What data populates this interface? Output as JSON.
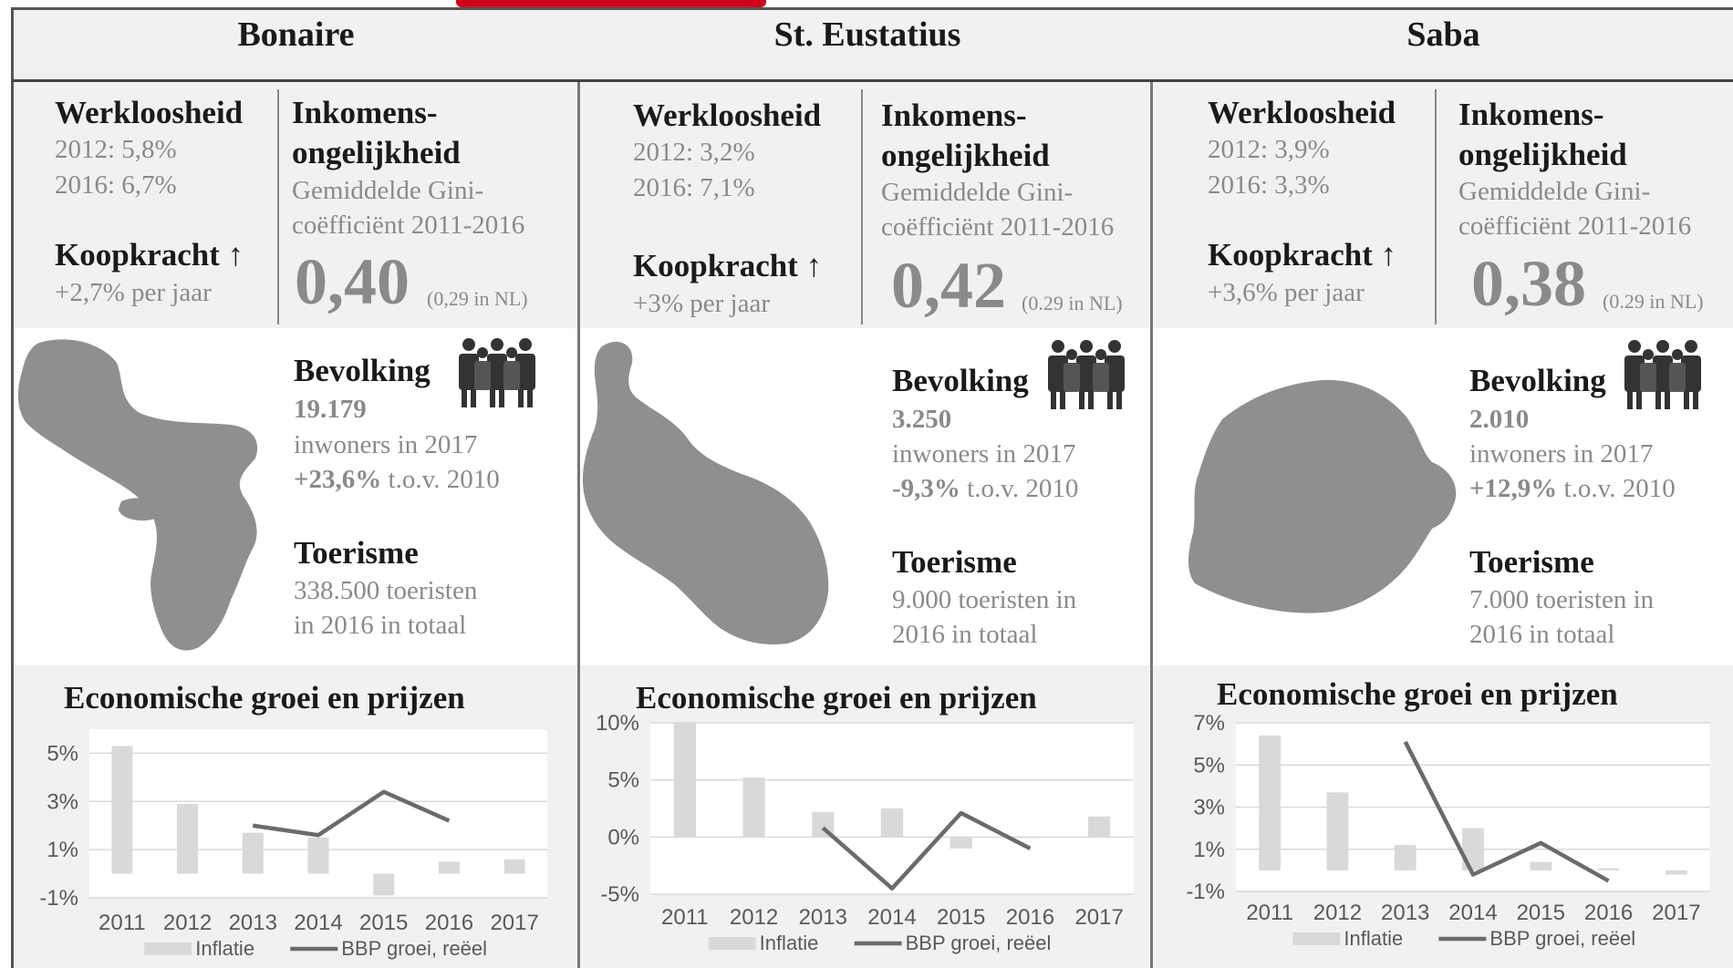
{
  "columns": [
    {
      "title": "Bonaire",
      "werkloosheid": {
        "label": "Werkloosheid",
        "line1": "2012: 5,8%",
        "line2": "2016: 6,7%"
      },
      "koopkracht": {
        "label": "Koopkracht ↑",
        "value": "+2,7% per jaar"
      },
      "inkomens": {
        "label1": "Inkomens-",
        "label2": "ongelijkheid",
        "desc1": "Gemiddelde Gini-",
        "desc2": "coëfficiënt 2011-2016",
        "value": "0,40",
        "note": "(0,29 in NL)"
      },
      "bevolking": {
        "label": "Bevolking",
        "value": "19.179",
        "desc": "inwoners in 2017",
        "change_bold": "+23,6%",
        "change_rest": " t.o.v. 2010"
      },
      "toerisme": {
        "label": "Toerisme",
        "line1": "338.500 toeristen",
        "line2": "in 2016 in totaal"
      },
      "chart_title": "Economische groei en prijzen"
    },
    {
      "title": "St. Eustatius",
      "werkloosheid": {
        "label": "Werkloosheid",
        "line1": "2012: 3,2%",
        "line2": "2016: 7,1%"
      },
      "koopkracht": {
        "label": "Koopkracht ↑",
        "value": "+3% per jaar"
      },
      "inkomens": {
        "label1": "Inkomens-",
        "label2": "ongelijkheid",
        "desc1": "Gemiddelde Gini-",
        "desc2": "coëfficiënt 2011-2016",
        "value": "0,42",
        "note": "(0.29 in NL)"
      },
      "bevolking": {
        "label": "Bevolking",
        "value": "3.250",
        "desc": "inwoners in 2017",
        "change_bold": "-9,3%",
        "change_rest": " t.o.v. 2010"
      },
      "toerisme": {
        "label": "Toerisme",
        "line1": "9.000 toeristen in",
        "line2": "2016 in totaal"
      },
      "chart_title": "Economische groei en prijzen"
    },
    {
      "title": "Saba",
      "werkloosheid": {
        "label": "Werkloosheid",
        "line1": "2012: 3,9%",
        "line2": "2016: 3,3%"
      },
      "koopkracht": {
        "label": "Koopkracht ↑",
        "value": "+3,6% per jaar"
      },
      "inkomens": {
        "label1": "Inkomens-",
        "label2": "ongelijkheid",
        "desc1": "Gemiddelde Gini-",
        "desc2": "coëfficiënt 2011-2016",
        "value": "0,38",
        "note": "(0.29 in NL)"
      },
      "bevolking": {
        "label": "Bevolking",
        "value": "2.010",
        "desc": "inwoners in 2017",
        "change_bold": "+12,9%",
        "change_rest": " t.o.v. 2010"
      },
      "toerisme": {
        "label": "Toerisme",
        "line1": "7.000 toeristen in",
        "line2": "2016 in totaal"
      },
      "chart_title": "Economische groei en prijzen"
    }
  ],
  "colors": {
    "bar": "#d9d9d9",
    "line": "#6b6b6b",
    "map": "#8f8f8f",
    "icon": "#333333"
  },
  "icons": [
    "people-group-icon"
  ],
  "chart_data": [
    {
      "type": "bar",
      "title": "Economische groei en prijzen",
      "categories": [
        "2011",
        "2012",
        "2013",
        "2014",
        "2015",
        "2016",
        "2017"
      ],
      "series": [
        {
          "name": "Inflatie",
          "type": "bar",
          "values": [
            5.3,
            2.9,
            1.7,
            1.5,
            -0.9,
            0.5,
            0.6
          ]
        },
        {
          "name": "BBP groei, reëel",
          "type": "line",
          "values": [
            null,
            null,
            2.0,
            1.6,
            3.4,
            2.2,
            null
          ]
        }
      ],
      "yticks": [
        "5%",
        "3%",
        "1%",
        "-1%"
      ],
      "ylim": [
        -1,
        6
      ]
    },
    {
      "type": "bar",
      "title": "Economische groei en prijzen",
      "categories": [
        "2011",
        "2012",
        "2013",
        "2014",
        "2015",
        "2016",
        "2017"
      ],
      "series": [
        {
          "name": "Inflatie",
          "type": "bar",
          "values": [
            10.0,
            5.2,
            2.2,
            2.5,
            -1.0,
            0.0,
            1.8
          ]
        },
        {
          "name": "BBP groei, reëel",
          "type": "line",
          "values": [
            null,
            null,
            0.8,
            -4.5,
            2.1,
            -1.0,
            null
          ]
        }
      ],
      "yticks": [
        "10%",
        "5%",
        "0%",
        "-5%"
      ],
      "ylim": [
        -5,
        10
      ]
    },
    {
      "type": "bar",
      "title": "Economische groei en prijzen",
      "categories": [
        "2011",
        "2012",
        "2013",
        "2014",
        "2015",
        "2016",
        "2017"
      ],
      "series": [
        {
          "name": "Inflatie",
          "type": "bar",
          "values": [
            6.4,
            3.7,
            1.2,
            2.0,
            0.4,
            0.1,
            -0.2
          ]
        },
        {
          "name": "BBP groei, reëel",
          "type": "line",
          "values": [
            null,
            null,
            6.1,
            -0.2,
            1.3,
            -0.5,
            null
          ]
        }
      ],
      "yticks": [
        "7%",
        "5%",
        "3%",
        "1%",
        "-1%"
      ],
      "ylim": [
        -1,
        7
      ]
    }
  ]
}
